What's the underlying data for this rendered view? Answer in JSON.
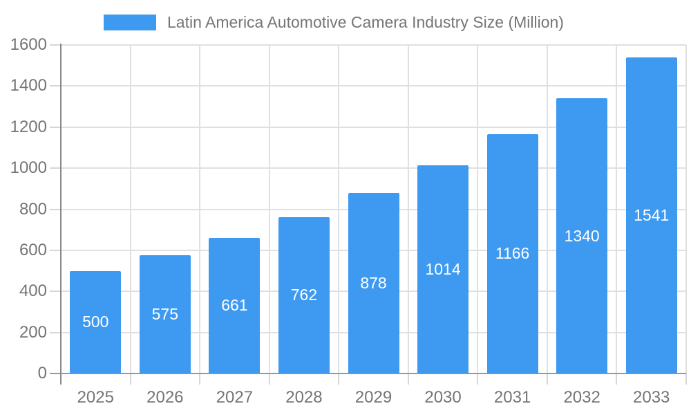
{
  "chart_data": {
    "type": "bar",
    "title": "Latin America Automotive Camera Industry Size (Million)",
    "categories": [
      "2025",
      "2026",
      "2027",
      "2028",
      "2029",
      "2030",
      "2031",
      "2032",
      "2033"
    ],
    "values": [
      500,
      575,
      661,
      762,
      878,
      1014,
      1166,
      1340,
      1541
    ],
    "xlabel": "",
    "ylabel": "",
    "ylim": [
      0,
      1600
    ],
    "ytick_step": 200,
    "grid": true,
    "legend_position": "top",
    "colors": {
      "bar": "#3D9AF0",
      "value_label": "#FFFFFF",
      "axis_label": "#757575",
      "gridline": "#E0E0E0",
      "tick": "#D6D6D6",
      "x_axis_line": "#999999",
      "y_axis_line": "#888888",
      "background": "#FFFFFF"
    }
  }
}
